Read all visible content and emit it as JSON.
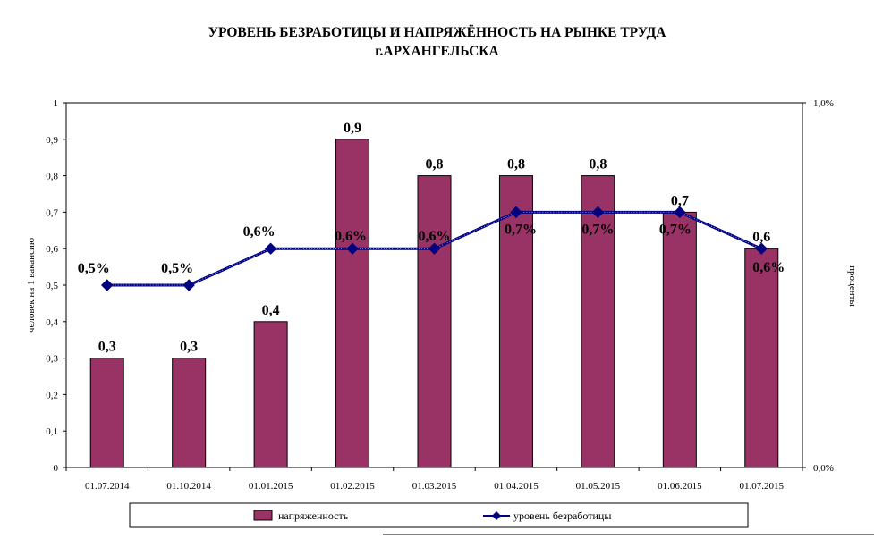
{
  "chart_data": {
    "type": "bar+line",
    "title_lines": [
      "УРОВЕНЬ БЕЗРАБОТИЦЫ И НАПРЯЖЁННОСТЬ НА РЫНКЕ ТРУДА",
      "г.АРХАНГЕЛЬСКА"
    ],
    "ylabel_left": "человек на 1 вакансию",
    "ylabel_right": "проценты",
    "categories": [
      "01.07.2014",
      "01.10.2014",
      "01.01.2015",
      "01.02.2015",
      "01.03.2015",
      "01.04.2015",
      "01.05.2015",
      "01.06.2015",
      "01.07.2015"
    ],
    "y_left": {
      "min": 0,
      "max": 1,
      "ticks": [
        "0",
        "0,1",
        "0,2",
        "0,3",
        "0,4",
        "0,5",
        "0,6",
        "0,7",
        "0,8",
        "0,9",
        "1"
      ]
    },
    "y_right": {
      "min": 0,
      "max": 1,
      "ticks": [
        "0,0%",
        "1,0%"
      ]
    },
    "grid": false,
    "legend_position": "bottom",
    "series": [
      {
        "name": "напряженность",
        "type": "bar",
        "axis": "left",
        "color": "#993366",
        "values": [
          0.3,
          0.3,
          0.4,
          0.9,
          0.8,
          0.8,
          0.8,
          0.7,
          0.6
        ],
        "labels": [
          "0,3",
          "0,3",
          "0,4",
          "0,9",
          "0,8",
          "0,8",
          "0,8",
          "0,7",
          "0,6"
        ]
      },
      {
        "name": "уровень безработицы",
        "type": "line",
        "axis": "right",
        "color": "#000080",
        "values": [
          0.5,
          0.5,
          0.6,
          0.6,
          0.6,
          0.7,
          0.7,
          0.7,
          0.6
        ],
        "labels": [
          "0,5%",
          "0,5%",
          "0,6%",
          "0,6%",
          "0,6%",
          "0,7%",
          "0,7%",
          "0,7%",
          "0,6%"
        ]
      }
    ]
  }
}
